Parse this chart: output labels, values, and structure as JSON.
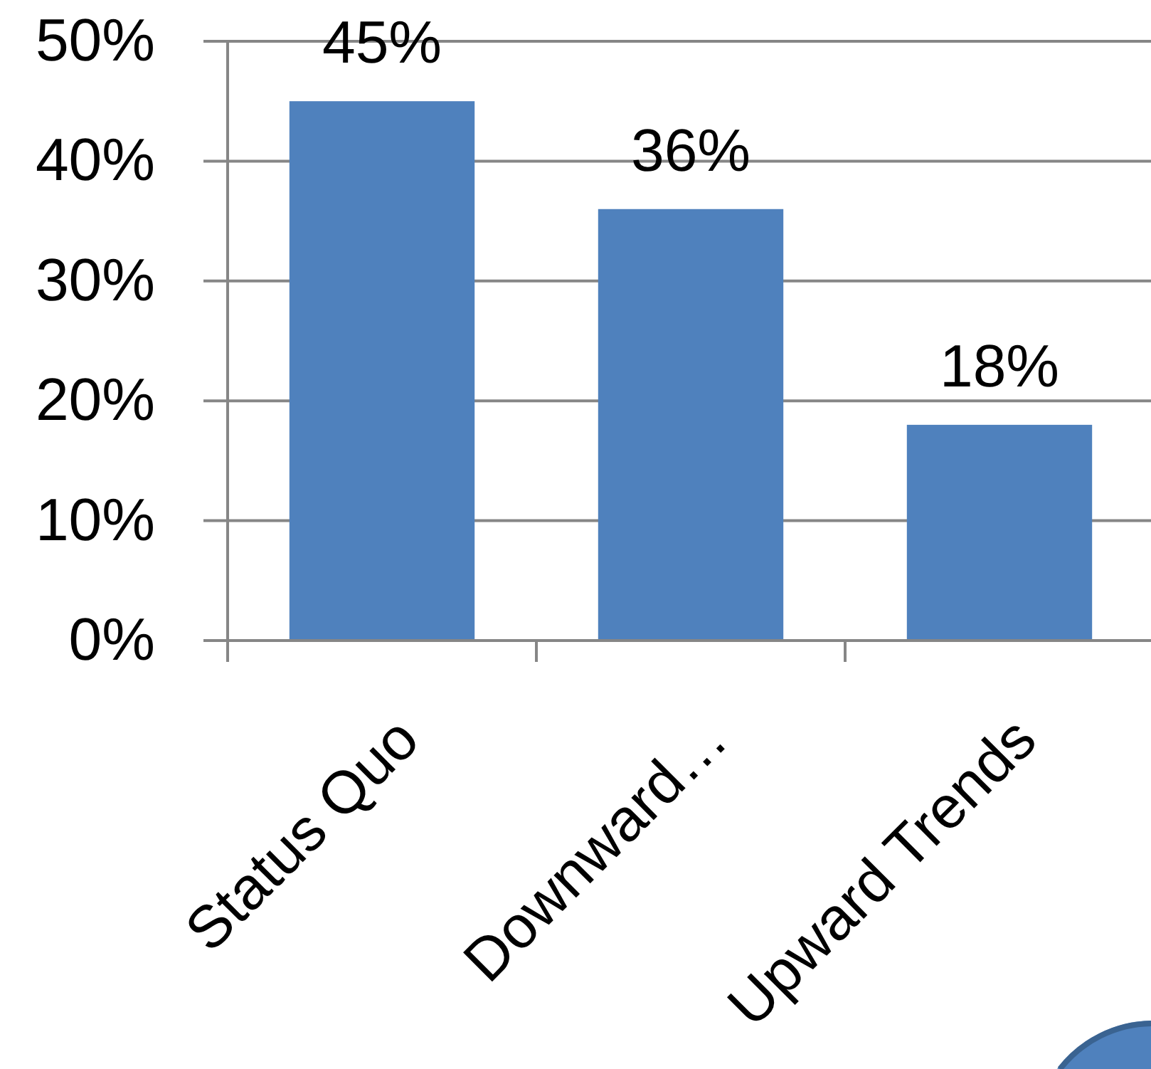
{
  "chart_data": {
    "type": "bar",
    "categories": [
      "Status Quo",
      "Downward…",
      "Upward Trends"
    ],
    "values": [
      45,
      36,
      18
    ],
    "color": "#4f81bd",
    "value_labels": [
      "45%",
      "36%",
      "18%"
    ],
    "ylim": [
      0,
      50
    ],
    "yticks": [
      {
        "value": 0,
        "label": "0%"
      },
      {
        "value": 10,
        "label": "10%"
      },
      {
        "value": 20,
        "label": "20%"
      },
      {
        "value": 30,
        "label": "30%"
      },
      {
        "value": 40,
        "label": "40%"
      },
      {
        "value": 50,
        "label": "50%"
      }
    ],
    "grid": "y"
  }
}
